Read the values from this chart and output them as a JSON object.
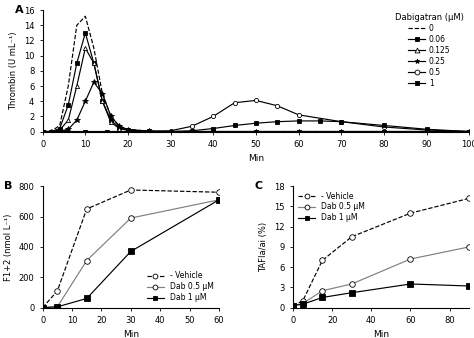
{
  "panel_A": {
    "title": "A",
    "xlabel": "Min",
    "ylabel": "Thrombin (U mL⁻¹)",
    "xlim": [
      0,
      100
    ],
    "ylim": [
      0,
      16
    ],
    "yticks": [
      0,
      2,
      4,
      6,
      8,
      10,
      12,
      14,
      16
    ],
    "xticks": [
      0,
      10,
      20,
      30,
      40,
      50,
      60,
      70,
      80,
      90,
      100
    ],
    "legend_title": "Dabigatran (μM)",
    "series": [
      {
        "label": "0",
        "linestyle": "--",
        "marker": null,
        "markersize": 0,
        "color": "black",
        "markerfacecolor": "black",
        "x": [
          0,
          2,
          4,
          6,
          8,
          10,
          12,
          14,
          16,
          18,
          20,
          25,
          30,
          40,
          50,
          60,
          70,
          80,
          90,
          100
        ],
        "y": [
          0,
          0.05,
          0.8,
          6,
          14,
          15.2,
          11,
          5,
          2,
          0.7,
          0.3,
          0.05,
          0,
          0,
          0,
          0,
          0,
          0,
          0,
          0
        ]
      },
      {
        "label": "0.06",
        "linestyle": "-",
        "marker": "s",
        "markersize": 3,
        "color": "black",
        "markerfacecolor": "black",
        "x": [
          0,
          2,
          4,
          6,
          8,
          10,
          12,
          14,
          16,
          18,
          20,
          25,
          30,
          40,
          50,
          60,
          70,
          80,
          90,
          100
        ],
        "y": [
          0,
          0,
          0.4,
          3.5,
          9,
          13,
          9,
          4,
          1.5,
          0.5,
          0.2,
          0.05,
          0,
          0,
          0,
          0,
          0,
          0,
          0,
          0
        ]
      },
      {
        "label": "0.125",
        "linestyle": "-",
        "marker": "^",
        "markersize": 3,
        "color": "black",
        "markerfacecolor": "white",
        "x": [
          0,
          2,
          4,
          6,
          8,
          10,
          12,
          14,
          16,
          18,
          20,
          25,
          30,
          40,
          50,
          60,
          70,
          80,
          90,
          100
        ],
        "y": [
          0,
          0,
          0.2,
          1.5,
          6,
          11,
          9,
          4,
          1.2,
          0.4,
          0.15,
          0,
          0,
          0,
          0,
          0,
          0,
          0,
          0,
          0
        ]
      },
      {
        "label": "0.25",
        "linestyle": "-",
        "marker": "*",
        "markersize": 4,
        "color": "black",
        "markerfacecolor": "black",
        "x": [
          0,
          2,
          4,
          6,
          8,
          10,
          12,
          14,
          16,
          18,
          20,
          25,
          30,
          40,
          50,
          60,
          70,
          80,
          90,
          100
        ],
        "y": [
          0,
          0,
          0.05,
          0.3,
          1.5,
          4,
          6.5,
          5,
          2,
          0.7,
          0.25,
          0.05,
          0,
          0,
          0,
          0,
          0,
          0,
          0,
          0
        ]
      },
      {
        "label": "0.5",
        "linestyle": "-",
        "marker": "o",
        "markersize": 3,
        "color": "black",
        "markerfacecolor": "white",
        "x": [
          0,
          5,
          10,
          15,
          20,
          25,
          30,
          35,
          40,
          45,
          50,
          55,
          60,
          70,
          80,
          90,
          100
        ],
        "y": [
          0,
          0,
          0,
          0,
          0,
          0,
          0.1,
          0.7,
          2.0,
          3.8,
          4.1,
          3.4,
          2.2,
          1.3,
          0.6,
          0.2,
          0
        ]
      },
      {
        "label": "1",
        "linestyle": "-",
        "marker": "s",
        "markersize": 3,
        "color": "black",
        "markerfacecolor": "black",
        "x": [
          0,
          5,
          10,
          15,
          20,
          25,
          30,
          35,
          40,
          45,
          50,
          55,
          60,
          65,
          70,
          80,
          90,
          100
        ],
        "y": [
          0,
          0,
          0,
          0,
          0,
          0,
          0,
          0.1,
          0.4,
          0.8,
          1.1,
          1.3,
          1.4,
          1.4,
          1.3,
          0.8,
          0.3,
          0
        ]
      }
    ]
  },
  "panel_B": {
    "title": "B",
    "xlabel": "Min",
    "ylabel": "F1+2 (nmol L⁻¹)",
    "xlim": [
      0,
      60
    ],
    "ylim": [
      0,
      800
    ],
    "yticks": [
      0,
      200,
      400,
      600,
      800
    ],
    "xticks": [
      0,
      10,
      20,
      30,
      40,
      50,
      60
    ],
    "series": [
      {
        "label": "- Vehicle",
        "linestyle": "--",
        "marker": "o",
        "markersize": 4,
        "markerfacecolor": "white",
        "color": "black",
        "x": [
          0,
          5,
          15,
          30,
          60
        ],
        "y": [
          0,
          110,
          650,
          775,
          760
        ]
      },
      {
        "label": "Dab 0.5 μM",
        "linestyle": "-",
        "marker": "o",
        "markersize": 4,
        "markerfacecolor": "white",
        "color": "gray",
        "x": [
          0,
          5,
          15,
          30,
          60
        ],
        "y": [
          0,
          5,
          310,
          590,
          710
        ]
      },
      {
        "label": "Dab 1 μM",
        "linestyle": "-",
        "marker": "s",
        "markersize": 4,
        "markerfacecolor": "black",
        "color": "black",
        "x": [
          0,
          5,
          15,
          30,
          60
        ],
        "y": [
          0,
          5,
          60,
          370,
          710
        ]
      }
    ]
  },
  "panel_C": {
    "title": "C",
    "xlabel": "Min",
    "ylabel": "TAFIa/ai (%)",
    "xlim": [
      0,
      90
    ],
    "ylim": [
      0,
      18
    ],
    "yticks": [
      0,
      3,
      6,
      9,
      12,
      15,
      18
    ],
    "xticks": [
      0,
      20,
      40,
      60,
      80
    ],
    "series": [
      {
        "label": "- Vehicle",
        "linestyle": "--",
        "marker": "o",
        "markersize": 4,
        "markerfacecolor": "white",
        "color": "black",
        "x": [
          0,
          5,
          15,
          30,
          60,
          90
        ],
        "y": [
          0.3,
          1.0,
          7.0,
          10.5,
          14.0,
          16.2
        ]
      },
      {
        "label": "Dab 0.5 μM",
        "linestyle": "-",
        "marker": "o",
        "markersize": 4,
        "markerfacecolor": "white",
        "color": "gray",
        "x": [
          0,
          5,
          15,
          30,
          60,
          90
        ],
        "y": [
          0.3,
          0.6,
          2.5,
          3.5,
          7.2,
          9.0
        ]
      },
      {
        "label": "Dab 1 μM",
        "linestyle": "-",
        "marker": "s",
        "markersize": 4,
        "markerfacecolor": "black",
        "color": "black",
        "x": [
          0,
          5,
          15,
          30,
          60,
          90
        ],
        "y": [
          0.3,
          0.5,
          1.5,
          2.2,
          3.5,
          3.2
        ]
      }
    ]
  }
}
